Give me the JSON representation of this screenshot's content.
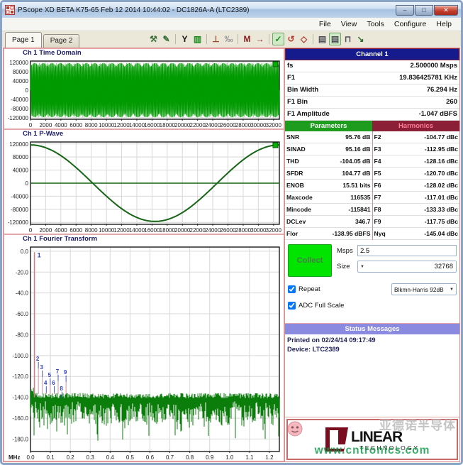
{
  "window": {
    "title": "PScope XD BETA K75-65 Feb 12 2014 10:44:02 - DC1826A-A (LTC2389)",
    "buttons": {
      "minimize": "–",
      "maximize": "□",
      "close": "✕"
    }
  },
  "menu": {
    "items": [
      "File",
      "View",
      "Tools",
      "Configure",
      "Help"
    ]
  },
  "tabs": [
    {
      "label": "Page 1",
      "active": true
    },
    {
      "label": "Page 2",
      "active": false
    }
  ],
  "toolbar": {
    "icons": [
      {
        "name": "probe-tools-icon",
        "glyph": "⚒",
        "color": "#336b33"
      },
      {
        "name": "marker-pen-icon",
        "glyph": "✎",
        "color": "#336b33"
      },
      {
        "name": "separator"
      },
      {
        "name": "y-scale-icon",
        "glyph": "Y",
        "color": "#141414"
      },
      {
        "name": "histogram-icon",
        "glyph": "▥",
        "color": "#1e8c1e"
      },
      {
        "name": "separator"
      },
      {
        "name": "pedestal-icon",
        "glyph": "⊥",
        "color": "#9a4a2a"
      },
      {
        "name": "phase-icon",
        "glyph": "‰",
        "color": "#8f8f8f"
      },
      {
        "name": "separator"
      },
      {
        "name": "max-avg-icon",
        "glyph": "M",
        "color": "#8a1a1a"
      },
      {
        "name": "run-avg-icon",
        "glyph": "→",
        "color": "#8a1a1a"
      },
      {
        "name": "separator"
      },
      {
        "name": "collect-mode-icon",
        "glyph": "✓",
        "color": "#1e8c1e",
        "selected": true
      },
      {
        "name": "reset-icon",
        "glyph": "↺",
        "color": "#b23a2a"
      },
      {
        "name": "clip-region-icon",
        "glyph": "◇",
        "color": "#b23a2a"
      },
      {
        "name": "separator"
      },
      {
        "name": "tile-windows-icon",
        "glyph": "▤",
        "color": "#50505a"
      },
      {
        "name": "notes-window-icon",
        "glyph": "▤",
        "color": "#50505a",
        "selected": true
      },
      {
        "name": "step-response-icon",
        "glyph": "⊓",
        "color": "#50505a"
      },
      {
        "name": "export-icon",
        "glyph": "↘",
        "color": "#2e6b2e"
      }
    ]
  },
  "channel_panel": {
    "title": "Channel 1",
    "rows": [
      {
        "label": "fs",
        "value": "2.500000 Msps"
      },
      {
        "label": "F1",
        "value": "19.836425781 KHz"
      },
      {
        "label": "Bin Width",
        "value": "76.294 Hz"
      },
      {
        "label": "F1 Bin",
        "value": "260"
      },
      {
        "label": "F1 Amplitude",
        "value": "-1.047 dBFS"
      }
    ]
  },
  "parameters": {
    "title": "Parameters",
    "rows": [
      {
        "label": "SNR",
        "value": "95.76 dB"
      },
      {
        "label": "SINAD",
        "value": "95.16 dB"
      },
      {
        "label": "THD",
        "value": "-104.05 dB"
      },
      {
        "label": "SFDR",
        "value": "104.77 dB"
      },
      {
        "label": "ENOB",
        "value": "15.51 bits"
      },
      {
        "label": "Maxcode",
        "value": "116535"
      },
      {
        "label": "Mincode",
        "value": "-115841"
      },
      {
        "label": "DCLev",
        "value": "346.7"
      },
      {
        "label": "Flor",
        "value": "-138.95 dBFS"
      }
    ]
  },
  "harmonics": {
    "title": "Harmonics",
    "rows": [
      {
        "label": "F2",
        "value": "-104.77 dBc"
      },
      {
        "label": "F3",
        "value": "-112.95 dBc"
      },
      {
        "label": "F4",
        "value": "-128.16 dBc"
      },
      {
        "label": "F5",
        "value": "-120.70 dBc"
      },
      {
        "label": "F6",
        "value": "-128.02 dBc"
      },
      {
        "label": "F7",
        "value": "-117.01 dBc"
      },
      {
        "label": "F8",
        "value": "-133.33 dBc"
      },
      {
        "label": "F9",
        "value": "-117.75 dBc"
      },
      {
        "label": "Nyq",
        "value": "-145.04 dBc"
      }
    ]
  },
  "controls": {
    "collect_label": "Collect",
    "msps_label": "Msps",
    "msps_value": "2.5",
    "size_label": "Size",
    "size_value": "32768",
    "repeat_label": "Repeat",
    "repeat_checked": true,
    "window_value": "Blkmn-Harris 92dB",
    "adc_label": "ADC Full Scale",
    "adc_checked": true
  },
  "status": {
    "title": "Status Messages",
    "lines": [
      "Printed on 02/24/14 09:17:49",
      "Device: LTC2389"
    ]
  },
  "logo": {
    "brand": "LINEAR",
    "sub": "TECHNOLOGY"
  },
  "watermark": {
    "cn": "亚德诺半导体",
    "url": "www.cntronics.com"
  },
  "colors": {
    "navy": "#151b8d",
    "green": "#1e9c1e",
    "maroon": "#8c1f38",
    "lavender": "#8a8ae0",
    "collect_green": "#00e400",
    "panel_border": "#dd8f8f",
    "waveform_green": "#009b00",
    "noise_green": "#0a7d0a",
    "fundamental_pink": "#cf7d8a",
    "marker_blue": "#3340c0"
  },
  "chart_data": [
    {
      "id": "time_domain",
      "type": "line",
      "title": "Ch 1 Time Domain",
      "x_ticks": [
        0,
        2000,
        4000,
        6000,
        8000,
        10000,
        12000,
        14000,
        16000,
        18000,
        20000,
        22000,
        24000,
        26000,
        28000,
        30000,
        32000
      ],
      "x_max": 32768,
      "x_decimals": 0,
      "y_ticks": [
        120000,
        80000,
        40000,
        0,
        -40000,
        -80000,
        -120000
      ],
      "y_min": -126000,
      "y_max": 126000,
      "y_decimals": 0,
      "grid": true,
      "legend_color": "#00b400",
      "series": [
        {
          "name": "Ch1",
          "color": "#009b00",
          "amplitude": 117000,
          "cycles": 260,
          "shape": "sin"
        }
      ]
    },
    {
      "id": "p_wave",
      "type": "line",
      "title": "Ch 1 P-Wave",
      "x_ticks": [
        0,
        2000,
        4000,
        6000,
        8000,
        10000,
        12000,
        14000,
        16000,
        18000,
        20000,
        22000,
        24000,
        26000,
        28000,
        30000,
        32000
      ],
      "x_max": 32768,
      "x_decimals": 0,
      "y_ticks": [
        120000,
        80000,
        40000,
        0,
        -40000,
        -80000,
        -120000
      ],
      "y_min": -126000,
      "y_max": 126000,
      "y_decimals": 0,
      "grid": true,
      "zero_line": true,
      "legend_color": "#00b400",
      "series": [
        {
          "name": "Ch1",
          "color": "#156515",
          "amplitude": 117000,
          "cycles": 1,
          "shape": "cos"
        }
      ]
    },
    {
      "id": "fourier",
      "type": "line",
      "title": "Ch 1 Fourier Transform",
      "x_label": "MHz",
      "x_ticks": [
        0,
        0.1,
        0.2,
        0.3,
        0.4,
        0.5,
        0.6,
        0.7,
        0.8,
        0.9,
        1.0,
        1.1,
        1.2
      ],
      "x_max": 1.25,
      "x_decimals": 1,
      "y_ticks": [
        0,
        -20,
        -40,
        -60,
        -80,
        -100,
        -120,
        -140,
        -160,
        -180
      ],
      "y_min": -192,
      "y_max": 4,
      "y_decimals": 1,
      "grid": true,
      "fundamental": {
        "label": "1",
        "freq_mhz": 0.019836,
        "amplitude_db": -1.047
      },
      "harmonic_markers": [
        {
          "label": "2",
          "freq_mhz": 0.039673,
          "db": -104.77
        },
        {
          "label": "3",
          "freq_mhz": 0.059509,
          "db": -112.95
        },
        {
          "label": "4",
          "freq_mhz": 0.079346,
          "db": -128.16
        },
        {
          "label": "5",
          "freq_mhz": 0.099182,
          "db": -120.7
        },
        {
          "label": "6",
          "freq_mhz": 0.119019,
          "db": -128.02
        },
        {
          "label": "7",
          "freq_mhz": 0.138855,
          "db": -117.01
        },
        {
          "label": "8",
          "freq_mhz": 0.158691,
          "db": -133.33
        },
        {
          "label": "9",
          "freq_mhz": 0.178528,
          "db": -117.75
        }
      ],
      "noise_floor_db": -145
    }
  ]
}
